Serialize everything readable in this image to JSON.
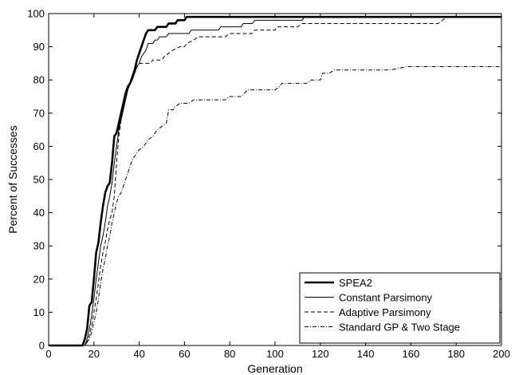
{
  "chart_data": {
    "type": "line",
    "title": "",
    "xlabel": "Generation",
    "ylabel": "Percent of Successes",
    "xlim": [
      0,
      200
    ],
    "ylim": [
      0,
      100
    ],
    "xticks": [
      0,
      20,
      40,
      60,
      80,
      100,
      120,
      140,
      160,
      180,
      200
    ],
    "yticks": [
      0,
      10,
      20,
      30,
      40,
      50,
      60,
      70,
      80,
      90,
      100
    ],
    "grid": false,
    "legend_position": "bottom-right",
    "series": [
      {
        "name": "SPEA2",
        "style": "solid-bold",
        "color": "#000000",
        "points": [
          [
            0,
            0
          ],
          [
            15,
            0
          ],
          [
            16,
            2
          ],
          [
            17,
            5
          ],
          [
            18,
            12
          ],
          [
            19,
            13
          ],
          [
            20,
            20
          ],
          [
            21,
            28
          ],
          [
            22,
            31
          ],
          [
            23,
            37
          ],
          [
            24,
            42
          ],
          [
            25,
            46
          ],
          [
            26,
            48
          ],
          [
            27,
            49
          ],
          [
            28,
            55
          ],
          [
            29,
            63
          ],
          [
            30,
            64
          ],
          [
            31,
            67
          ],
          [
            32,
            70
          ],
          [
            33,
            73
          ],
          [
            34,
            76
          ],
          [
            35,
            78
          ],
          [
            36,
            79
          ],
          [
            37,
            81
          ],
          [
            38,
            83
          ],
          [
            39,
            86
          ],
          [
            40,
            88
          ],
          [
            41,
            90
          ],
          [
            42,
            92
          ],
          [
            43,
            94
          ],
          [
            44,
            95
          ],
          [
            46,
            95
          ],
          [
            47,
            95
          ],
          [
            48,
            96
          ],
          [
            52,
            96
          ],
          [
            53,
            97
          ],
          [
            56,
            97
          ],
          [
            57,
            98
          ],
          [
            58,
            98
          ],
          [
            59,
            98
          ],
          [
            60,
            98
          ],
          [
            61,
            99
          ],
          [
            200,
            99
          ]
        ]
      },
      {
        "name": "Constant Parsimony",
        "style": "solid",
        "color": "#000000",
        "points": [
          [
            0,
            0
          ],
          [
            16,
            0
          ],
          [
            17,
            2
          ],
          [
            18,
            5
          ],
          [
            19,
            9
          ],
          [
            20,
            14
          ],
          [
            21,
            20
          ],
          [
            22,
            25
          ],
          [
            23,
            30
          ],
          [
            24,
            33
          ],
          [
            25,
            37
          ],
          [
            26,
            42
          ],
          [
            27,
            45
          ],
          [
            28,
            49
          ],
          [
            29,
            55
          ],
          [
            30,
            60
          ],
          [
            31,
            65
          ],
          [
            32,
            68
          ],
          [
            33,
            71
          ],
          [
            34,
            74
          ],
          [
            35,
            77
          ],
          [
            36,
            79
          ],
          [
            37,
            80
          ],
          [
            38,
            82
          ],
          [
            39,
            84
          ],
          [
            40,
            85
          ],
          [
            41,
            87
          ],
          [
            42,
            88
          ],
          [
            43,
            89
          ],
          [
            44,
            91
          ],
          [
            45,
            91
          ],
          [
            46,
            91
          ],
          [
            47,
            92
          ],
          [
            48,
            92
          ],
          [
            49,
            93
          ],
          [
            52,
            93
          ],
          [
            53,
            94
          ],
          [
            62,
            94
          ],
          [
            63,
            95
          ],
          [
            75,
            95
          ],
          [
            76,
            96
          ],
          [
            85,
            96
          ],
          [
            86,
            97
          ],
          [
            90,
            97
          ],
          [
            91,
            98
          ],
          [
            112,
            98
          ],
          [
            113,
            99
          ],
          [
            200,
            99
          ]
        ]
      },
      {
        "name": "Adaptive Parsimony",
        "style": "dashed",
        "color": "#000000",
        "points": [
          [
            0,
            0
          ],
          [
            16,
            0
          ],
          [
            17,
            1
          ],
          [
            18,
            3
          ],
          [
            19,
            6
          ],
          [
            20,
            10
          ],
          [
            21,
            14
          ],
          [
            22,
            19
          ],
          [
            23,
            24
          ],
          [
            24,
            28
          ],
          [
            25,
            31
          ],
          [
            26,
            35
          ],
          [
            27,
            38
          ],
          [
            28,
            40
          ],
          [
            29,
            45
          ],
          [
            30,
            55
          ],
          [
            31,
            63
          ],
          [
            32,
            68
          ],
          [
            33,
            72
          ],
          [
            34,
            75
          ],
          [
            35,
            78
          ],
          [
            36,
            79
          ],
          [
            37,
            81
          ],
          [
            38,
            83
          ],
          [
            39,
            84
          ],
          [
            40,
            85
          ],
          [
            45,
            85
          ],
          [
            46,
            86
          ],
          [
            50,
            86
          ],
          [
            51,
            87
          ],
          [
            53,
            88
          ],
          [
            55,
            89
          ],
          [
            58,
            90
          ],
          [
            60,
            90
          ],
          [
            61,
            91
          ],
          [
            64,
            92
          ],
          [
            66,
            93
          ],
          [
            78,
            93
          ],
          [
            80,
            94
          ],
          [
            90,
            94
          ],
          [
            91,
            95
          ],
          [
            100,
            95
          ],
          [
            101,
            96
          ],
          [
            110,
            96
          ],
          [
            112,
            97
          ],
          [
            122,
            97
          ],
          [
            123,
            97
          ],
          [
            172,
            97
          ],
          [
            174,
            98
          ],
          [
            176,
            99
          ],
          [
            200,
            99
          ]
        ]
      },
      {
        "name": "Standard GP & Two Stage",
        "style": "dashdot",
        "color": "#000000",
        "points": [
          [
            0,
            0
          ],
          [
            16,
            0
          ],
          [
            17,
            1
          ],
          [
            18,
            2
          ],
          [
            19,
            4
          ],
          [
            20,
            7
          ],
          [
            21,
            10
          ],
          [
            22,
            14
          ],
          [
            23,
            19
          ],
          [
            24,
            23
          ],
          [
            25,
            26
          ],
          [
            26,
            30
          ],
          [
            27,
            33
          ],
          [
            28,
            37
          ],
          [
            29,
            40
          ],
          [
            30,
            43
          ],
          [
            31,
            45
          ],
          [
            32,
            46
          ],
          [
            33,
            48
          ],
          [
            34,
            50
          ],
          [
            35,
            52
          ],
          [
            36,
            54
          ],
          [
            37,
            56
          ],
          [
            38,
            57
          ],
          [
            39,
            58
          ],
          [
            40,
            59
          ],
          [
            42,
            60
          ],
          [
            44,
            62
          ],
          [
            46,
            63
          ],
          [
            48,
            65
          ],
          [
            50,
            66
          ],
          [
            52,
            67
          ],
          [
            53,
            71
          ],
          [
            55,
            71
          ],
          [
            56,
            72
          ],
          [
            58,
            73
          ],
          [
            62,
            73
          ],
          [
            64,
            74
          ],
          [
            78,
            74
          ],
          [
            80,
            75
          ],
          [
            85,
            75
          ],
          [
            88,
            77
          ],
          [
            96,
            77
          ],
          [
            98,
            77
          ],
          [
            100,
            77
          ],
          [
            102,
            78
          ],
          [
            103,
            79
          ],
          [
            114,
            79
          ],
          [
            116,
            80
          ],
          [
            120,
            80
          ],
          [
            121,
            82
          ],
          [
            124,
            82
          ],
          [
            126,
            83
          ],
          [
            150,
            83
          ],
          [
            151,
            83
          ],
          [
            158,
            84
          ],
          [
            200,
            84
          ]
        ]
      }
    ]
  }
}
